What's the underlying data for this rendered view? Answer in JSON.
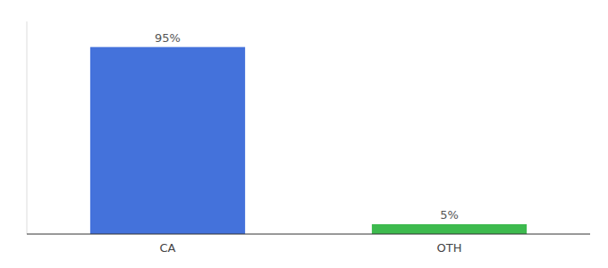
{
  "chart_data": {
    "type": "bar",
    "categories": [
      "CA",
      "OTH"
    ],
    "values": [
      95,
      5
    ],
    "value_labels": [
      "95%",
      "5%"
    ],
    "colors": [
      "#4472db",
      "#3dba4e"
    ],
    "ylim": [
      0,
      108
    ],
    "data_labels": true,
    "tick_labels": "x"
  }
}
